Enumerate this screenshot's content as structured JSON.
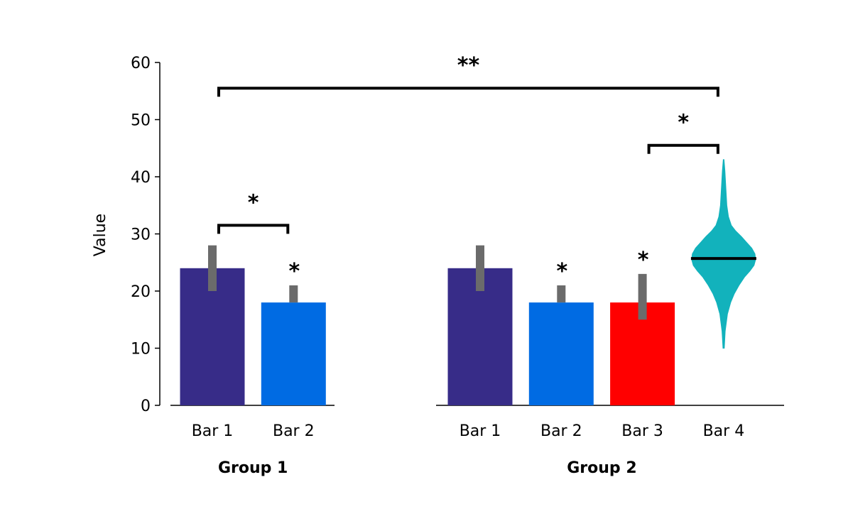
{
  "chart_data": {
    "type": "bar",
    "ylabel": "Value",
    "ylim": [
      0,
      60
    ],
    "yticks": [
      0,
      10,
      20,
      30,
      40,
      50,
      60
    ],
    "groups": [
      {
        "label": "Group 1",
        "bars": [
          {
            "name": "Bar 1",
            "kind": "bar",
            "value": 24,
            "err_low": 20,
            "err_high": 28,
            "color": "#372C88",
            "star": ""
          },
          {
            "name": "Bar 2",
            "kind": "bar",
            "value": 18,
            "err_low": 18,
            "err_high": 21,
            "color": "#006BE3",
            "star": "*"
          }
        ]
      },
      {
        "label": "Group 2",
        "bars": [
          {
            "name": "Bar 1",
            "kind": "bar",
            "value": 24,
            "err_low": 20,
            "err_high": 28,
            "color": "#372C88",
            "star": ""
          },
          {
            "name": "Bar 2",
            "kind": "bar",
            "value": 18,
            "err_low": 18,
            "err_high": 21,
            "color": "#006BE3",
            "star": "*"
          },
          {
            "name": "Bar 3",
            "kind": "bar",
            "value": 18,
            "err_low": 15,
            "err_high": 23,
            "color": "#FF0000",
            "star": "*"
          },
          {
            "name": "Bar 4",
            "kind": "violin",
            "median": 25.7,
            "min": 10,
            "max": 43,
            "color": "#12B2BC",
            "star": "",
            "density": [
              [
                10,
                0.02
              ],
              [
                13,
                0.05
              ],
              [
                16,
                0.12
              ],
              [
                18,
                0.22
              ],
              [
                19.5,
                0.33
              ],
              [
                21,
                0.48
              ],
              [
                22.5,
                0.66
              ],
              [
                23.5,
                0.82
              ],
              [
                24.5,
                0.95
              ],
              [
                25.5,
                1.0
              ],
              [
                26.5,
                0.98
              ],
              [
                27.5,
                0.88
              ],
              [
                28.5,
                0.72
              ],
              [
                29.5,
                0.56
              ],
              [
                30.5,
                0.38
              ],
              [
                31.5,
                0.24
              ],
              [
                33,
                0.15
              ],
              [
                35,
                0.1
              ],
              [
                37,
                0.08
              ],
              [
                39,
                0.06
              ],
              [
                41,
                0.04
              ],
              [
                43,
                0.01
              ]
            ]
          }
        ]
      }
    ],
    "brackets": [
      {
        "from": [
          0,
          0
        ],
        "to": [
          0,
          1
        ],
        "y": 31.5,
        "label": "*"
      },
      {
        "from": [
          1,
          2
        ],
        "to": [
          1,
          3
        ],
        "y": 45.5,
        "label": "*"
      },
      {
        "from": [
          0,
          0
        ],
        "to": [
          1,
          3
        ],
        "y": 55.5,
        "label": "**"
      }
    ]
  }
}
